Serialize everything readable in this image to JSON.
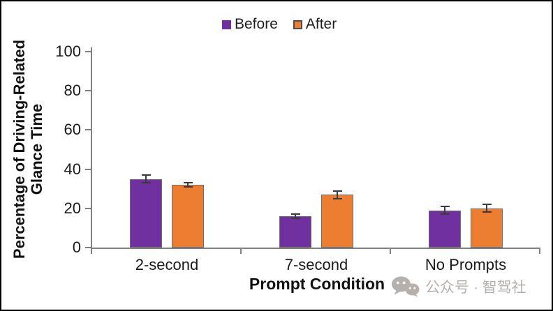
{
  "chart_data": {
    "type": "bar",
    "title": "",
    "xlabel": "Prompt Condition",
    "ylabel": "Percentage of Driving-Related Glance Time",
    "ylabel_lines": [
      "Percentage of Driving-Related",
      "Glance Time"
    ],
    "categories": [
      "2-second",
      "7-second",
      "No Prompts"
    ],
    "series": [
      {
        "name": "Before",
        "color": "#7030A0",
        "values": [
          35,
          16,
          19
        ],
        "errors": [
          2,
          1,
          2
        ]
      },
      {
        "name": "After",
        "color": "#ED7D31",
        "values": [
          32,
          27,
          20
        ],
        "errors": [
          1,
          2,
          2
        ]
      }
    ],
    "ylim": [
      0,
      100
    ],
    "yticks": [
      0,
      20,
      40,
      60,
      80,
      100
    ],
    "grid": false,
    "legend_position": "top-center",
    "error_bars": true,
    "axis_color": "#808080",
    "error_bar_color": "#3a3a3a"
  },
  "legend": {
    "items": [
      {
        "label": "Before",
        "color": "#7030A0"
      },
      {
        "label": "After",
        "color": "#ED7D31"
      }
    ]
  },
  "watermark": {
    "icon": "wechat-icon",
    "text": "公众号 · 智驾社",
    "color": "#b5b0ab"
  }
}
